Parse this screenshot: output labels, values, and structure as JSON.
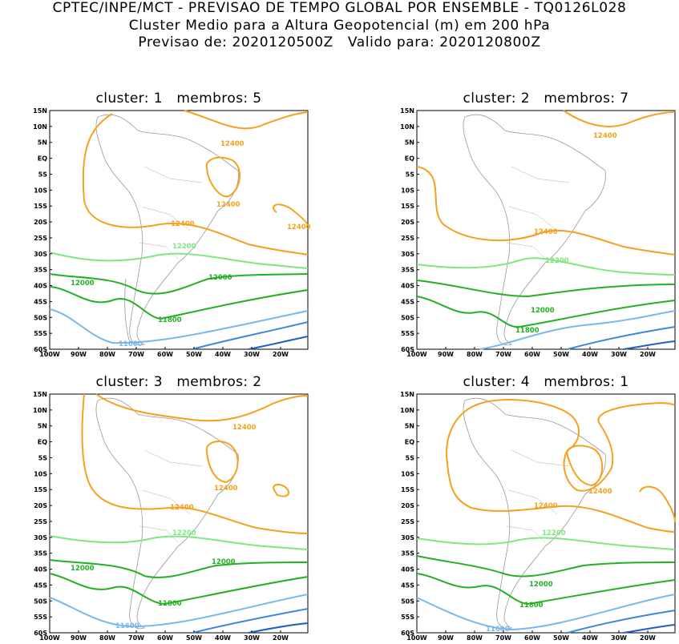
{
  "header": {
    "line1": "CPTEC/INPE/MCT - PREVISAO DE TEMPO GLOBAL POR ENSEMBLE - TQ0126L028",
    "line2": "Cluster Medio para a Altura Geopotencial (m) em 200 hPa",
    "line3": "Previsao de: 2020120500Z   Valido para: 2020120800Z"
  },
  "axes": {
    "y_ticks": [
      "15N",
      "10N",
      "5N",
      "EQ",
      "5S",
      "10S",
      "15S",
      "20S",
      "25S",
      "30S",
      "35S",
      "40S",
      "45S",
      "50S",
      "55S",
      "60S"
    ],
    "x_ticks": [
      "100W",
      "90W",
      "80W",
      "70W",
      "60W",
      "50W",
      "40W",
      "30W",
      "20W"
    ]
  },
  "colors": {
    "c12400": "#f5a11d",
    "c12200": "#7ee87e",
    "c12000": "#23b023",
    "c11800a": "#78b8ec",
    "c11800b": "#3b88dc",
    "c11800c": "#1f5fc8"
  },
  "panels": [
    {
      "title": "cluster: 1   membros: 5",
      "labels": {
        "a": "12400",
        "b": "12400",
        "c": "12400",
        "d": "12400",
        "e": "12200",
        "f": "12000",
        "g": "12000",
        "h": "11800",
        "i": "11600"
      }
    },
    {
      "title": "cluster: 2   membros: 7",
      "labels": {
        "a": "12400",
        "d": "12400",
        "e": "12200",
        "g": "12000",
        "h": "11800"
      }
    },
    {
      "title": "cluster: 3   membros: 2",
      "labels": {
        "a": "12400",
        "b": "12400",
        "d": "12400",
        "e": "12200",
        "f": "12000",
        "g": "12000",
        "h": "11800",
        "i": "11600"
      }
    },
    {
      "title": "cluster: 4   membros: 1",
      "labels": {
        "b": "12400",
        "d": "12400",
        "e": "12200",
        "g": "12000",
        "h": "11800",
        "i": "11600"
      }
    }
  ]
}
